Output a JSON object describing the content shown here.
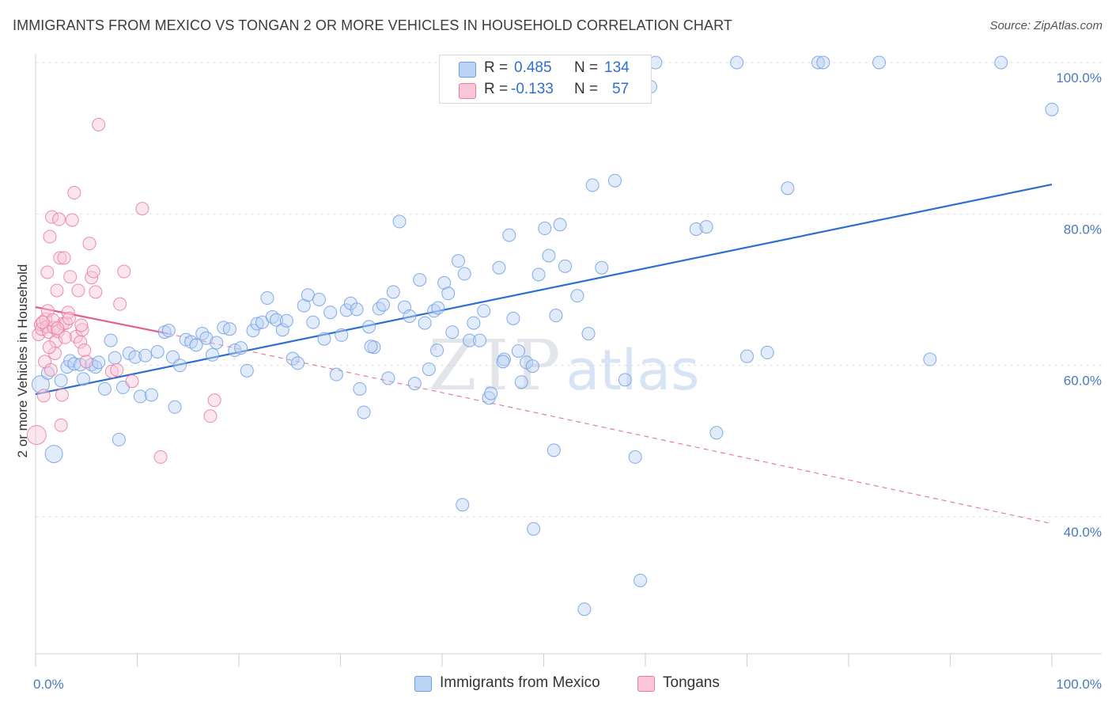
{
  "header": {
    "title": "IMMIGRANTS FROM MEXICO VS TONGAN 2 OR MORE VEHICLES IN HOUSEHOLD CORRELATION CHART",
    "source": "Source: ZipAtlas.com"
  },
  "watermark": {
    "zip": "ZIP",
    "atlas": "atlas"
  },
  "legend": {
    "r_label": "R =",
    "n_label": "N =",
    "series": [
      {
        "name": "Immigrants from Mexico",
        "r": "0.485",
        "n": "134",
        "color": "#6d9de6",
        "fill": "#bcd3f5"
      },
      {
        "name": "Tongans",
        "r": "-0.133",
        "n": "57",
        "color": "#e87aa0",
        "fill": "#f8c6d6"
      }
    ]
  },
  "chart_data": {
    "type": "scatter",
    "ylabel": "2 or more Vehicles in Household",
    "xlim": [
      0,
      100
    ],
    "ylim": [
      20,
      104
    ],
    "x_tick_labels": [
      "0.0%",
      "100.0%"
    ],
    "y_ticks": [
      {
        "value": 100,
        "label": "100.0%"
      },
      {
        "value": 80,
        "label": "80.0%"
      },
      {
        "value": 60,
        "label": "60.0%"
      },
      {
        "value": 40,
        "label": "40.0%"
      }
    ],
    "grid": true,
    "series": [
      {
        "name": "Immigrants from Mexico",
        "trend": {
          "x": [
            0,
            100
          ],
          "y": [
            56.2,
            83.9
          ]
        },
        "points": [
          [
            0.5,
            57.5
          ],
          [
            1.2,
            59.0
          ],
          [
            1.8,
            48.3
          ],
          [
            2.5,
            58.0
          ],
          [
            3.1,
            59.8
          ],
          [
            3.4,
            60.6
          ],
          [
            3.8,
            60.2
          ],
          [
            4.4,
            60.1
          ],
          [
            4.7,
            58.2
          ],
          [
            5.5,
            60.1
          ],
          [
            5.9,
            59.8
          ],
          [
            6.2,
            60.4
          ],
          [
            6.8,
            56.9
          ],
          [
            7.4,
            63.3
          ],
          [
            7.8,
            61.0
          ],
          [
            8.2,
            50.2
          ],
          [
            8.6,
            57.1
          ],
          [
            9.2,
            61.6
          ],
          [
            9.8,
            61.1
          ],
          [
            10.3,
            55.9
          ],
          [
            10.8,
            61.3
          ],
          [
            11.4,
            56.1
          ],
          [
            12.0,
            61.8
          ],
          [
            12.7,
            64.4
          ],
          [
            13.1,
            64.6
          ],
          [
            13.5,
            61.1
          ],
          [
            13.7,
            54.5
          ],
          [
            14.2,
            60.0
          ],
          [
            14.8,
            63.4
          ],
          [
            15.3,
            63.1
          ],
          [
            15.8,
            62.7
          ],
          [
            16.4,
            64.2
          ],
          [
            16.8,
            63.6
          ],
          [
            17.4,
            61.4
          ],
          [
            17.8,
            63.0
          ],
          [
            18.5,
            65.0
          ],
          [
            19.1,
            64.8
          ],
          [
            19.6,
            62.0
          ],
          [
            20.2,
            62.3
          ],
          [
            20.8,
            59.3
          ],
          [
            21.4,
            64.6
          ],
          [
            21.8,
            65.5
          ],
          [
            22.3,
            65.7
          ],
          [
            22.8,
            68.9
          ],
          [
            23.3,
            66.4
          ],
          [
            23.7,
            66.0
          ],
          [
            24.3,
            64.7
          ],
          [
            24.7,
            65.9
          ],
          [
            25.3,
            60.9
          ],
          [
            25.8,
            60.3
          ],
          [
            26.4,
            67.9
          ],
          [
            26.8,
            69.3
          ],
          [
            27.3,
            65.7
          ],
          [
            27.9,
            68.7
          ],
          [
            28.4,
            63.5
          ],
          [
            29.0,
            67.0
          ],
          [
            29.6,
            58.8
          ],
          [
            30.1,
            64.0
          ],
          [
            30.6,
            67.3
          ],
          [
            31.0,
            68.2
          ],
          [
            31.6,
            67.4
          ],
          [
            31.9,
            56.9
          ],
          [
            32.3,
            53.8
          ],
          [
            32.8,
            65.1
          ],
          [
            33.3,
            62.4
          ],
          [
            33.8,
            67.5
          ],
          [
            34.2,
            68.0
          ],
          [
            34.7,
            58.3
          ],
          [
            35.2,
            69.7
          ],
          [
            35.8,
            79.0
          ],
          [
            36.3,
            67.7
          ],
          [
            36.8,
            66.5
          ],
          [
            37.3,
            57.6
          ],
          [
            37.8,
            71.3
          ],
          [
            38.3,
            65.6
          ],
          [
            38.7,
            59.5
          ],
          [
            39.2,
            67.2
          ],
          [
            39.6,
            67.6
          ],
          [
            40.2,
            70.9
          ],
          [
            40.6,
            69.5
          ],
          [
            41.0,
            64.4
          ],
          [
            41.6,
            73.8
          ],
          [
            42.2,
            72.1
          ],
          [
            42.7,
            63.3
          ],
          [
            43.1,
            65.6
          ],
          [
            43.7,
            63.3
          ],
          [
            44.1,
            67.2
          ],
          [
            44.6,
            55.7
          ],
          [
            44.8,
            56.3
          ],
          [
            45.6,
            72.9
          ],
          [
            46.1,
            60.8
          ],
          [
            46.6,
            77.2
          ],
          [
            47.0,
            66.2
          ],
          [
            47.5,
            61.9
          ],
          [
            47.8,
            57.8
          ],
          [
            48.3,
            60.4
          ],
          [
            48.9,
            59.9
          ],
          [
            49.5,
            72.0
          ],
          [
            50.1,
            78.1
          ],
          [
            50.5,
            74.5
          ],
          [
            51.2,
            66.6
          ],
          [
            51.6,
            78.6
          ],
          [
            52.1,
            73.1
          ],
          [
            53.3,
            69.2
          ],
          [
            54.0,
            27.8
          ],
          [
            54.4,
            64.2
          ],
          [
            54.8,
            83.8
          ],
          [
            55.7,
            72.9
          ],
          [
            55.9,
            100.0
          ],
          [
            57.0,
            84.4
          ],
          [
            58.0,
            58.1
          ],
          [
            59.0,
            47.9
          ],
          [
            59.5,
            31.6
          ],
          [
            60.5,
            96.8
          ],
          [
            61.0,
            100.0
          ],
          [
            65.0,
            78.0
          ],
          [
            66.0,
            78.3
          ],
          [
            67.0,
            51.1
          ],
          [
            69.0,
            100.0
          ],
          [
            70.0,
            61.2
          ],
          [
            72.0,
            61.7
          ],
          [
            74.0,
            83.4
          ],
          [
            77.0,
            100.0
          ],
          [
            77.5,
            100.0
          ],
          [
            83.0,
            100.0
          ],
          [
            88.0,
            60.8
          ],
          [
            95.0,
            100.0
          ],
          [
            100.0,
            93.8
          ],
          [
            42.0,
            41.6
          ],
          [
            49.0,
            38.4
          ],
          [
            51.0,
            48.8
          ],
          [
            46.0,
            60.5
          ],
          [
            39.5,
            62.0
          ],
          [
            33.0,
            62.5
          ]
        ]
      },
      {
        "name": "Tongans",
        "trend": {
          "x": [
            0,
            13
          ],
          "y": [
            67.7,
            64.2
          ]
        },
        "trend_extended": {
          "x": [
            13,
            100
          ],
          "y": [
            64.2,
            39.1
          ]
        },
        "points": [
          [
            0.1,
            50.8
          ],
          [
            0.3,
            64.1
          ],
          [
            0.5,
            65.4
          ],
          [
            0.6,
            64.8
          ],
          [
            0.8,
            56.0
          ],
          [
            0.9,
            60.5
          ],
          [
            1.0,
            66.1
          ],
          [
            1.1,
            65.1
          ],
          [
            1.2,
            67.2
          ],
          [
            1.3,
            64.4
          ],
          [
            1.4,
            77.0
          ],
          [
            1.5,
            59.4
          ],
          [
            1.6,
            79.6
          ],
          [
            1.8,
            65.0
          ],
          [
            1.9,
            61.6
          ],
          [
            2.0,
            63.2
          ],
          [
            2.1,
            69.9
          ],
          [
            2.2,
            64.5
          ],
          [
            2.3,
            79.3
          ],
          [
            2.4,
            74.2
          ],
          [
            2.5,
            52.1
          ],
          [
            2.6,
            56.1
          ],
          [
            2.7,
            65.5
          ],
          [
            2.8,
            74.2
          ],
          [
            3.0,
            65.6
          ],
          [
            3.2,
            67.0
          ],
          [
            3.4,
            71.7
          ],
          [
            3.6,
            79.2
          ],
          [
            3.8,
            82.8
          ],
          [
            4.0,
            63.8
          ],
          [
            4.2,
            69.9
          ],
          [
            4.4,
            63.1
          ],
          [
            4.6,
            64.7
          ],
          [
            4.8,
            62.0
          ],
          [
            5.0,
            60.5
          ],
          [
            5.3,
            76.1
          ],
          [
            5.5,
            71.6
          ],
          [
            5.7,
            72.4
          ],
          [
            5.9,
            69.7
          ],
          [
            6.2,
            91.8
          ],
          [
            7.5,
            59.2
          ],
          [
            8.0,
            59.4
          ],
          [
            8.3,
            68.1
          ],
          [
            8.7,
            72.4
          ],
          [
            9.5,
            57.9
          ],
          [
            10.5,
            80.7
          ],
          [
            12.3,
            47.9
          ],
          [
            17.2,
            53.3
          ],
          [
            17.6,
            55.4
          ],
          [
            1.7,
            66.0
          ],
          [
            2.9,
            63.7
          ],
          [
            0.7,
            65.7
          ],
          [
            1.15,
            72.3
          ],
          [
            3.3,
            66.2
          ],
          [
            1.35,
            62.4
          ],
          [
            4.5,
            65.3
          ],
          [
            2.15,
            64.9
          ]
        ]
      }
    ]
  }
}
